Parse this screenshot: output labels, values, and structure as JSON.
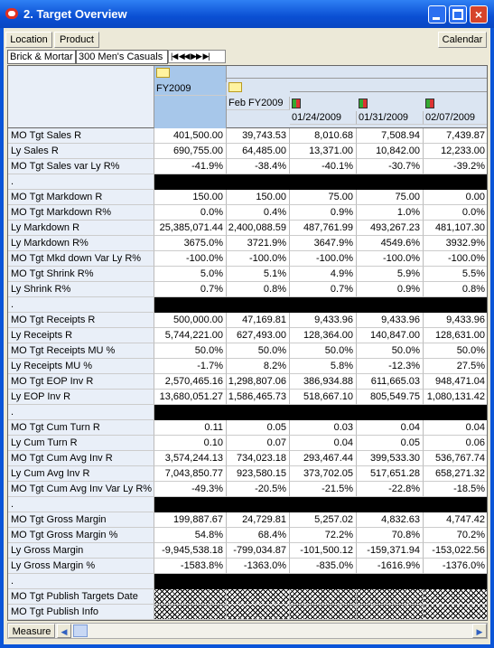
{
  "window": {
    "title": "2. Target Overview"
  },
  "toolbar": {
    "buttons": [
      "Location",
      "Product"
    ],
    "calendar": "Calendar"
  },
  "context": [
    "Brick & Mortar",
    "300 Men's Casuals"
  ],
  "columns": [
    "FY2009",
    "Feb FY2009",
    "01/24/2009",
    "01/31/2009",
    "02/07/2009"
  ],
  "separator_label": ".",
  "groups": [
    [
      {
        "label": "MO Tgt Sales R",
        "values": [
          "401,500.00",
          "39,743.53",
          "8,010.68",
          "7,508.94",
          "7,439.87"
        ]
      },
      {
        "label": "Ly Sales R",
        "values": [
          "690,755.00",
          "64,485.00",
          "13,371.00",
          "10,842.00",
          "12,233.00"
        ]
      },
      {
        "label": "MO Tgt Sales var Ly R%",
        "values": [
          "-41.9%",
          "-38.4%",
          "-40.1%",
          "-30.7%",
          "-39.2%"
        ]
      }
    ],
    [
      {
        "label": "MO Tgt Markdown R",
        "values": [
          "150.00",
          "150.00",
          "75.00",
          "75.00",
          "0.00"
        ]
      },
      {
        "label": "MO Tgt Markdown R%",
        "values": [
          "0.0%",
          "0.4%",
          "0.9%",
          "1.0%",
          "0.0%"
        ]
      },
      {
        "label": "Ly Markdown R",
        "values": [
          "25,385,071.44",
          "2,400,088.59",
          "487,761.99",
          "493,267.23",
          "481,107.30"
        ]
      },
      {
        "label": "Ly Markdown R%",
        "values": [
          "3675.0%",
          "3721.9%",
          "3647.9%",
          "4549.6%",
          "3932.9%"
        ]
      },
      {
        "label": "MO Tgt Mkd down Var Ly R%",
        "values": [
          "-100.0%",
          "-100.0%",
          "-100.0%",
          "-100.0%",
          "-100.0%"
        ]
      },
      {
        "label": "MO Tgt Shrink R%",
        "values": [
          "5.0%",
          "5.1%",
          "4.9%",
          "5.9%",
          "5.5%"
        ]
      },
      {
        "label": "Ly Shrink R%",
        "values": [
          "0.7%",
          "0.8%",
          "0.7%",
          "0.9%",
          "0.8%"
        ]
      }
    ],
    [
      {
        "label": "MO Tgt Receipts R",
        "values": [
          "500,000.00",
          "47,169.81",
          "9,433.96",
          "9,433.96",
          "9,433.96"
        ]
      },
      {
        "label": "Ly Receipts R",
        "values": [
          "5,744,221.00",
          "627,493.00",
          "128,364.00",
          "140,847.00",
          "128,631.00"
        ]
      },
      {
        "label": "MO Tgt Receipts MU %",
        "values": [
          "50.0%",
          "50.0%",
          "50.0%",
          "50.0%",
          "50.0%"
        ]
      },
      {
        "label": "Ly Receipts MU %",
        "values": [
          "-1.7%",
          "8.2%",
          "5.8%",
          "-12.3%",
          "27.5%"
        ]
      },
      {
        "label": "MO Tgt EOP Inv R",
        "values": [
          "2,570,465.16",
          "1,298,807.06",
          "386,934.88",
          "611,665.03",
          "948,471.04"
        ]
      },
      {
        "label": "Ly EOP Inv R",
        "values": [
          "13,680,051.27",
          "1,586,465.73",
          "518,667.10",
          "805,549.75",
          "1,080,131.42"
        ]
      }
    ],
    [
      {
        "label": "MO Tgt Cum Turn R",
        "values": [
          "0.11",
          "0.05",
          "0.03",
          "0.04",
          "0.04"
        ]
      },
      {
        "label": "Ly Cum Turn R",
        "values": [
          "0.10",
          "0.07",
          "0.04",
          "0.05",
          "0.06"
        ]
      },
      {
        "label": "MO Tgt Cum Avg Inv R",
        "values": [
          "3,574,244.13",
          "734,023.18",
          "293,467.44",
          "399,533.30",
          "536,767.74"
        ]
      },
      {
        "label": "Ly Cum Avg Inv R",
        "values": [
          "7,043,850.77",
          "923,580.15",
          "373,702.05",
          "517,651.28",
          "658,271.32"
        ]
      },
      {
        "label": "MO Tgt Cum Avg Inv Var Ly R%",
        "values": [
          "-49.3%",
          "-20.5%",
          "-21.5%",
          "-22.8%",
          "-18.5%"
        ]
      }
    ],
    [
      {
        "label": "MO Tgt Gross Margin",
        "values": [
          "199,887.67",
          "24,729.81",
          "5,257.02",
          "4,832.63",
          "4,747.42"
        ]
      },
      {
        "label": "MO Tgt Gross Margin %",
        "values": [
          "54.8%",
          "68.4%",
          "72.2%",
          "70.8%",
          "70.2%"
        ]
      },
      {
        "label": "Ly Gross Margin",
        "values": [
          "-9,945,538.18",
          "-799,034.87",
          "-101,500.12",
          "-159,371.94",
          "-153,022.56"
        ]
      },
      {
        "label": "Ly Gross Margin %",
        "values": [
          "-1583.8%",
          "-1363.0%",
          "-835.0%",
          "-1616.9%",
          "-1376.0%"
        ]
      }
    ],
    [
      {
        "label": "MO Tgt Publish Targets Date",
        "values": [
          null,
          null,
          null,
          null,
          null
        ]
      },
      {
        "label": "MO Tgt Publish Info",
        "values": [
          null,
          null,
          null,
          null,
          null
        ]
      }
    ]
  ],
  "footer": {
    "button": "Measure"
  }
}
